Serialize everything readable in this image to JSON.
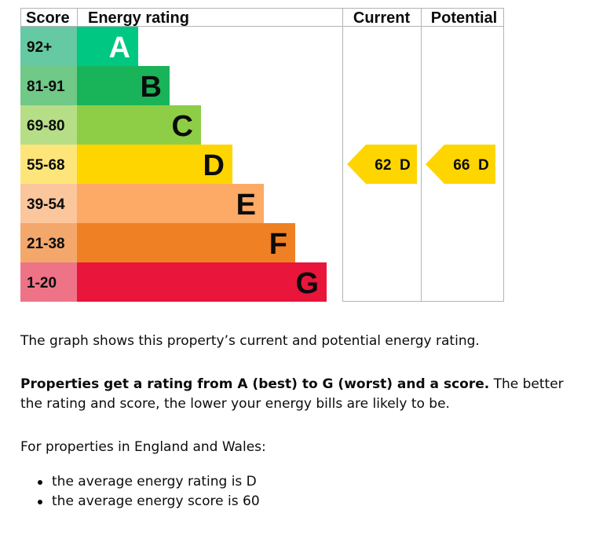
{
  "chart_data": {
    "type": "bar",
    "columns": {
      "score": "Score",
      "rating": "Energy rating",
      "current": "Current",
      "potential": "Potential"
    },
    "bands": [
      {
        "letter": "A",
        "score_range": "92+",
        "color": "#00c781",
        "score_bg": "#65c9a3"
      },
      {
        "letter": "B",
        "score_range": "81-91",
        "color": "#19b459",
        "score_bg": "#70c987"
      },
      {
        "letter": "C",
        "score_range": "69-80",
        "color": "#8dce46",
        "score_bg": "#b6de86"
      },
      {
        "letter": "D",
        "score_range": "55-68",
        "color": "#ffd500",
        "score_bg": "#fee57a"
      },
      {
        "letter": "E",
        "score_range": "39-54",
        "color": "#fcaa65",
        "score_bg": "#fbc69c"
      },
      {
        "letter": "F",
        "score_range": "21-38",
        "color": "#ef8023",
        "score_bg": "#f4a76b"
      },
      {
        "letter": "G",
        "score_range": "1-20",
        "color": "#e9153b",
        "score_bg": "#ef7387"
      }
    ],
    "current": {
      "score": 62,
      "band": "D",
      "label": "62  D"
    },
    "potential": {
      "score": 66,
      "band": "D",
      "label": "66  D"
    }
  },
  "text": {
    "intro": "The graph shows this property’s current and potential energy rating.",
    "rating_bold": "Properties get a rating from A (best) to G (worst) and a score.",
    "rating_rest": " The better the rating and score, the lower your energy bills are likely to be.",
    "region": "For properties in England and Wales:",
    "averages": [
      "the average energy rating is D",
      "the average energy score is 60"
    ]
  }
}
